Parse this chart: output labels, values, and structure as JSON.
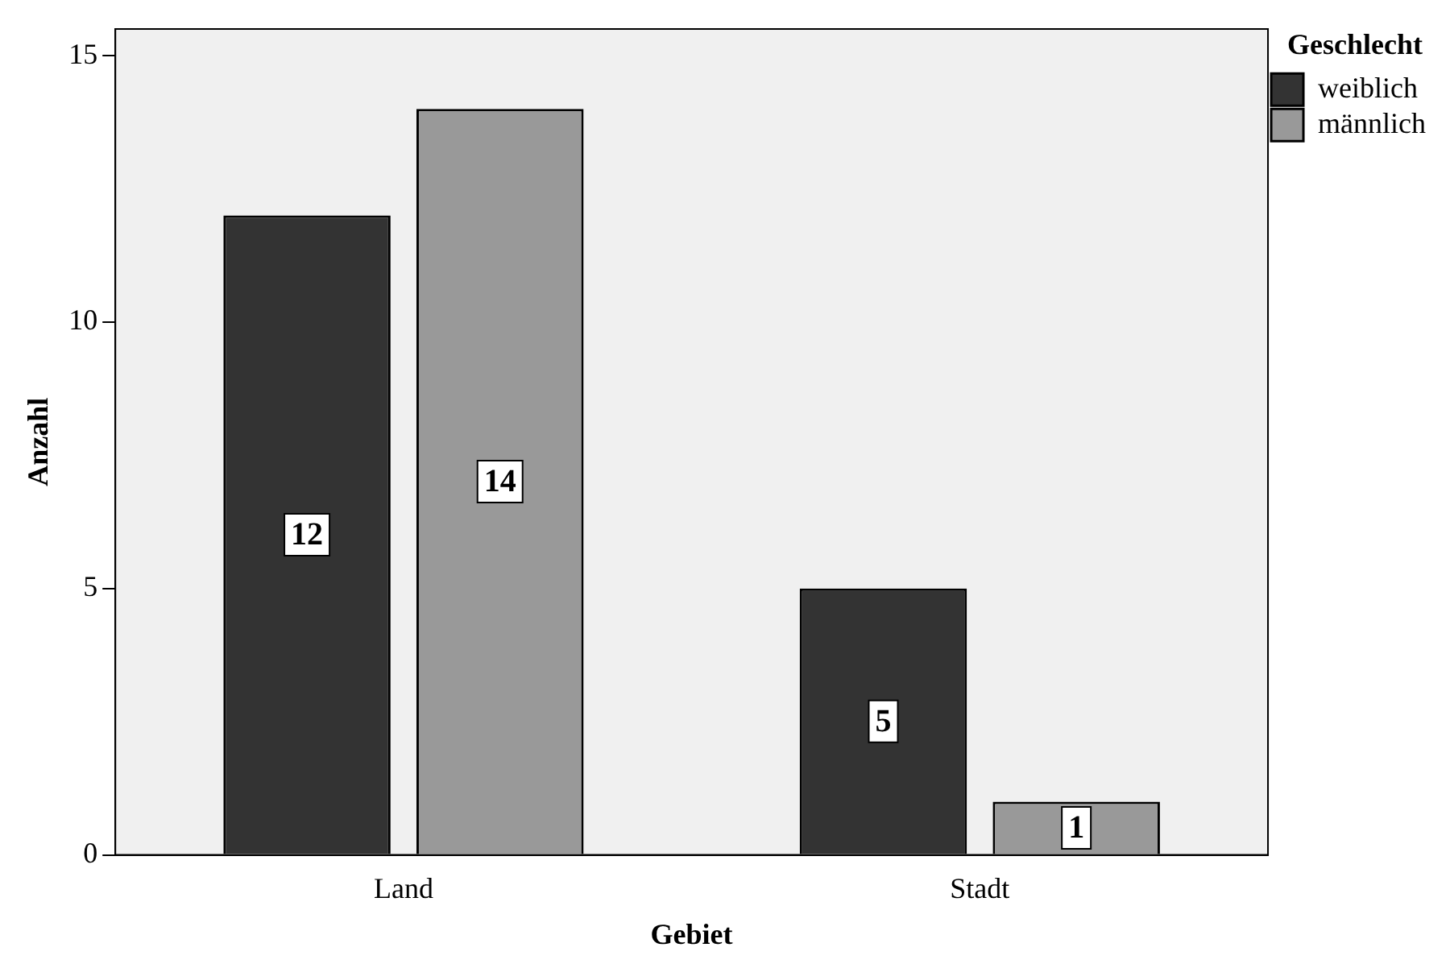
{
  "chart_data": {
    "type": "bar",
    "xlabel": "Gebiet",
    "ylabel": "Anzahl",
    "legend_title": "Geschlecht",
    "categories": [
      "Land",
      "Stadt"
    ],
    "series": [
      {
        "name": "weiblich",
        "color": "#333333",
        "values": [
          12,
          5
        ]
      },
      {
        "name": "männlich",
        "color": "#999999",
        "values": [
          14,
          1
        ]
      }
    ],
    "ylim": [
      0,
      15.5
    ],
    "yticks": [
      0,
      5,
      10,
      15
    ],
    "grid": false,
    "legend": "top right",
    "data_labels": true
  }
}
